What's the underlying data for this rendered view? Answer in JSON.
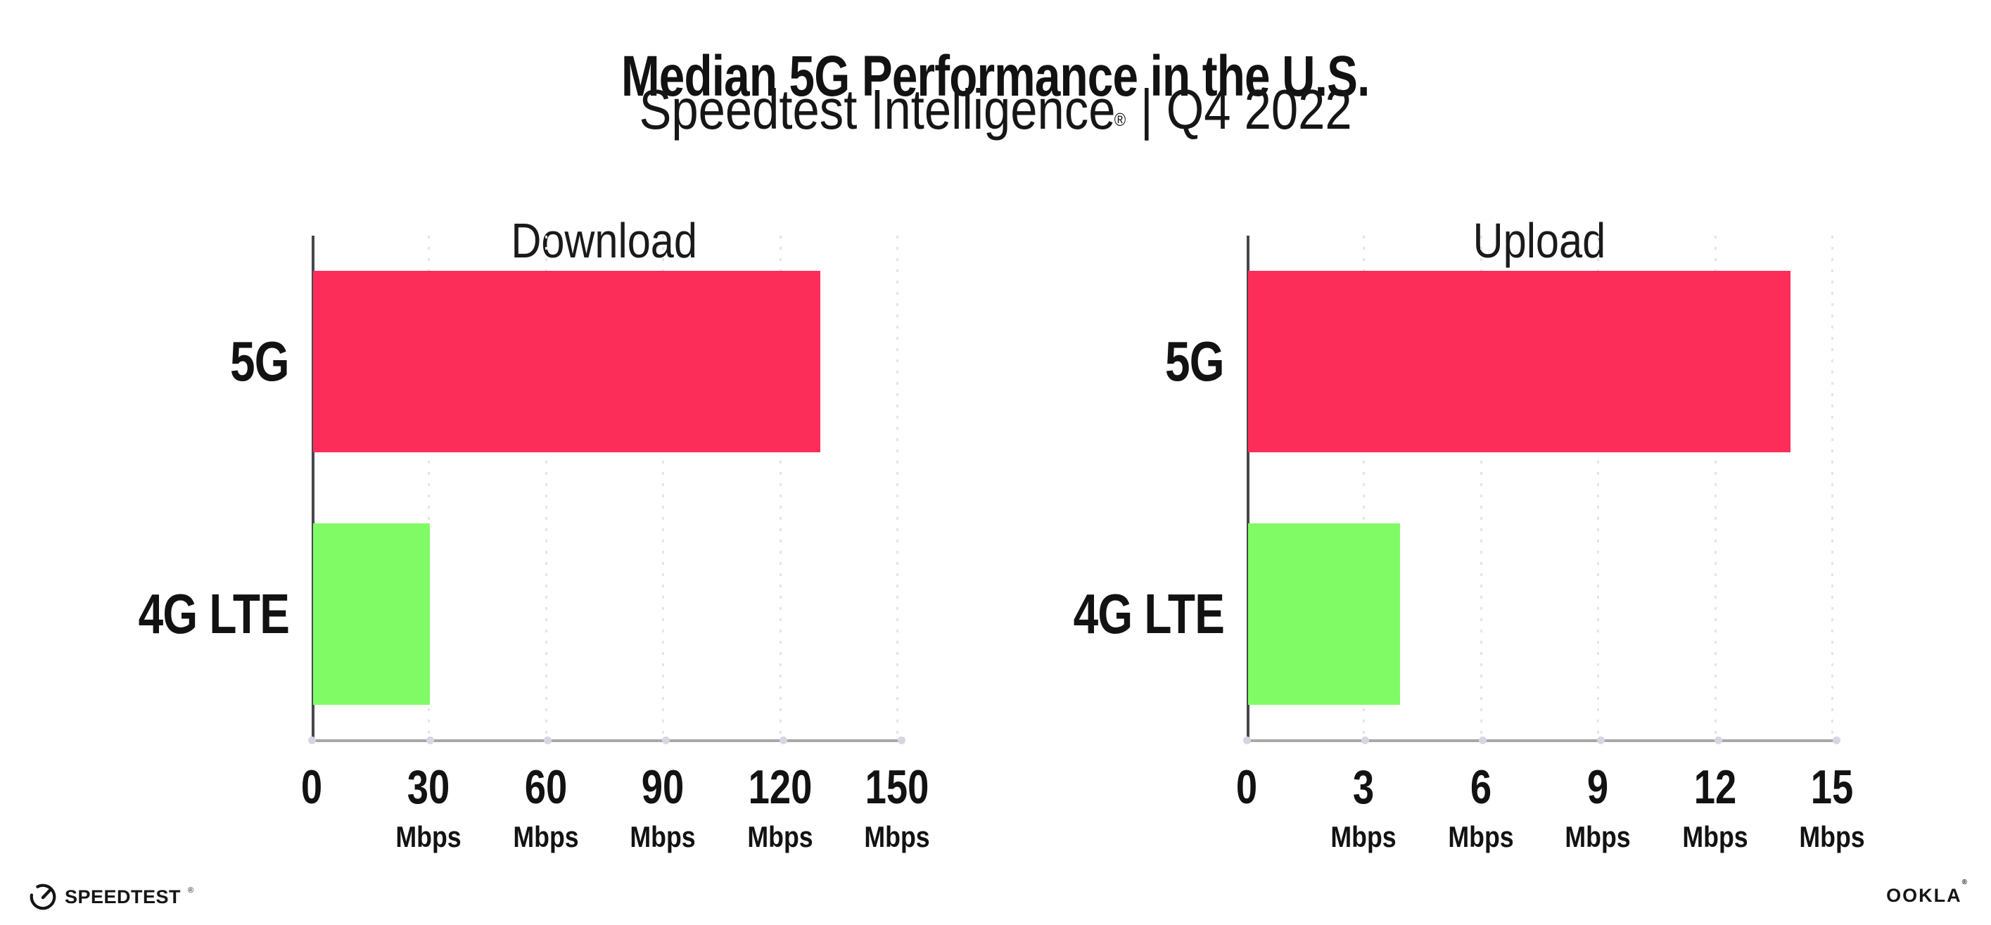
{
  "header": {
    "title": "Median 5G Performance in the U.S.",
    "subtitle_brand": "Speedtest Intelligence",
    "subtitle_registered": "®",
    "subtitle_separator": "|",
    "subtitle_period": "Q4 2022"
  },
  "chart_data": [
    {
      "type": "bar",
      "orientation": "horizontal",
      "title": "Download",
      "categories": [
        "5G",
        "4G LTE"
      ],
      "values": [
        130,
        30
      ],
      "unit": "Mbps",
      "xlabel": "",
      "ylabel": "",
      "xlim": [
        0,
        150
      ],
      "xticks": [
        0,
        30,
        60,
        90,
        120,
        150
      ],
      "tick_unit_label": "Mbps",
      "bar_colors": [
        "#FC2E59",
        "#80FB66"
      ],
      "grid": "dotted-vertical",
      "legend": "none"
    },
    {
      "type": "bar",
      "orientation": "horizontal",
      "title": "Upload",
      "categories": [
        "5G",
        "4G LTE"
      ],
      "values": [
        13.9,
        3.9
      ],
      "unit": "Mbps",
      "xlabel": "",
      "ylabel": "",
      "xlim": [
        0,
        15
      ],
      "xticks": [
        0,
        3,
        6,
        9,
        12,
        15
      ],
      "tick_unit_label": "Mbps",
      "bar_colors": [
        "#FC2E59",
        "#80FB66"
      ],
      "grid": "dotted-vertical",
      "legend": "none"
    }
  ],
  "footer": {
    "speedtest_label": "SPEEDTEST",
    "speedtest_registered": "®",
    "ookla_label": "OOKLA",
    "ookla_registered": "®"
  },
  "colors": {
    "bar_5g": "#FC2E59",
    "bar_4g_lte": "#80FB66",
    "gridline": "#E4E4EE",
    "x_axis": "#A8A8A8",
    "y_axis": "#47474F",
    "tick_dot": "#D6D6E2",
    "text": "#121212",
    "background": "#FFFFFF"
  }
}
